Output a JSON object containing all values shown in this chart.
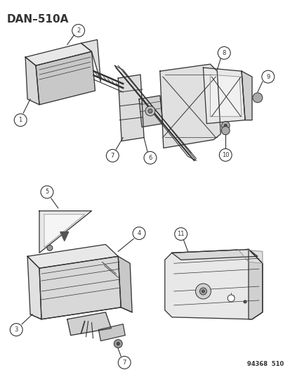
{
  "title": "DAN–510A",
  "footer": "94368  510",
  "bg_color": "#ffffff",
  "line_color": "#333333",
  "fig_width": 4.14,
  "fig_height": 5.33,
  "dpi": 100
}
